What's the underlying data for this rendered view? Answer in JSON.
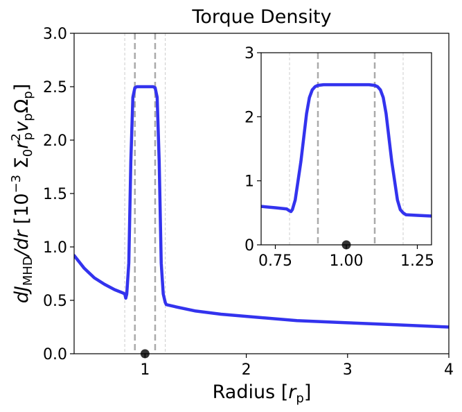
{
  "chart_data": [
    {
      "type": "line",
      "title": "Torque Density",
      "xlabel": "Radius [r_p]",
      "ylabel": "dJ_MHD/dr [10^-3 Σ0 r_p^2 v_p Ω_p]",
      "xlim": [
        0.3,
        4.0
      ],
      "ylim": [
        0.0,
        3.0
      ],
      "xticks": [
        1,
        2,
        3,
        4
      ],
      "xtick_labels": [
        "1",
        "2",
        "3",
        "4"
      ],
      "yticks": [
        0.0,
        0.5,
        1.0,
        1.5,
        2.0,
        2.5,
        3.0
      ],
      "ytick_labels": [
        "0.0",
        "0.5",
        "1.0",
        "1.5",
        "2.0",
        "2.5",
        "3.0"
      ],
      "grid": false,
      "series": [
        {
          "color": "#3333ee",
          "x": [
            0.3,
            0.4,
            0.5,
            0.6,
            0.7,
            0.78,
            0.8,
            0.81,
            0.82,
            0.84,
            0.86,
            0.88,
            0.9,
            0.92,
            1.08,
            1.1,
            1.12,
            1.14,
            1.16,
            1.18,
            1.19,
            1.2,
            1.21,
            1.3,
            1.5,
            1.75,
            2.0,
            2.5,
            3.0,
            3.5,
            4.0
          ],
          "y": [
            0.92,
            0.8,
            0.71,
            0.65,
            0.6,
            0.57,
            0.56,
            0.52,
            0.56,
            0.85,
            1.8,
            2.4,
            2.49,
            2.5,
            2.5,
            2.49,
            2.4,
            1.8,
            0.85,
            0.56,
            0.52,
            0.48,
            0.46,
            0.44,
            0.4,
            0.37,
            0.35,
            0.31,
            0.29,
            0.27,
            0.25
          ]
        }
      ],
      "vlines": [
        {
          "x": 0.8,
          "style": "thin-dashed",
          "color": "#cccccc"
        },
        {
          "x": 0.9,
          "style": "thick-dashed",
          "color": "#aaaaaa"
        },
        {
          "x": 1.1,
          "style": "thick-dashed",
          "color": "#aaaaaa"
        },
        {
          "x": 1.2,
          "style": "thin-dashed",
          "color": "#cccccc"
        }
      ],
      "marker": {
        "x": 1.0,
        "y": 0.0,
        "color": "#333333"
      }
    },
    {
      "type": "line",
      "title": "",
      "xlabel": "",
      "ylabel": "",
      "xlim": [
        0.7,
        1.3
      ],
      "ylim": [
        0.0,
        3.0
      ],
      "xticks": [
        0.75,
        1.0,
        1.25
      ],
      "xtick_labels": [
        "0.75",
        "1.00",
        "1.25"
      ],
      "yticks": [
        0,
        1,
        2,
        3
      ],
      "ytick_labels": [
        "0",
        "1",
        "2",
        "3"
      ],
      "grid": false,
      "series": [
        {
          "color": "#3333ee",
          "x": [
            0.7,
            0.75,
            0.79,
            0.8,
            0.805,
            0.81,
            0.82,
            0.84,
            0.86,
            0.87,
            0.88,
            0.89,
            0.9,
            0.92,
            1.08,
            1.1,
            1.11,
            1.12,
            1.13,
            1.14,
            1.16,
            1.18,
            1.19,
            1.2,
            1.21,
            1.25,
            1.3
          ],
          "y": [
            0.6,
            0.58,
            0.56,
            0.53,
            0.52,
            0.55,
            0.7,
            1.3,
            2.05,
            2.3,
            2.42,
            2.47,
            2.49,
            2.5,
            2.5,
            2.49,
            2.47,
            2.42,
            2.3,
            2.05,
            1.3,
            0.7,
            0.55,
            0.5,
            0.47,
            0.46,
            0.45
          ]
        }
      ],
      "vlines": [
        {
          "x": 0.8,
          "style": "thin-dashed",
          "color": "#cccccc"
        },
        {
          "x": 0.9,
          "style": "thick-dashed",
          "color": "#aaaaaa"
        },
        {
          "x": 1.1,
          "style": "thick-dashed",
          "color": "#aaaaaa"
        },
        {
          "x": 1.2,
          "style": "thin-dashed",
          "color": "#cccccc"
        }
      ],
      "marker": {
        "x": 1.0,
        "y": 0.0,
        "color": "#333333"
      }
    }
  ]
}
